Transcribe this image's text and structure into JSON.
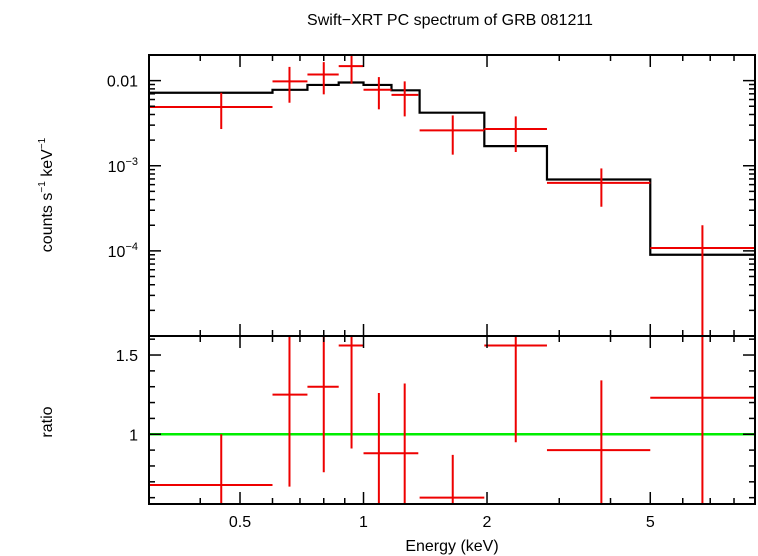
{
  "chart_data": {
    "type": "line",
    "title": "Swift−XRT PC spectrum of GRB 081211",
    "xlabel": "Energy (keV)",
    "xscale": "log",
    "xlim": [
      0.3,
      9.0
    ],
    "x_ticks": [
      {
        "value": 0.5,
        "label": "0.5"
      },
      {
        "value": 1,
        "label": "1"
      },
      {
        "value": 2,
        "label": "2"
      },
      {
        "value": 5,
        "label": "5"
      }
    ],
    "top_panel": {
      "ylabel": {
        "main": "counts s",
        "exp1": "−1",
        "mid": " keV",
        "exp2": "−1"
      },
      "yscale": "log",
      "ylim": [
        1e-05,
        0.02
      ],
      "y_ticks": [
        {
          "value": 0.01,
          "label": "0.01",
          "base": "",
          "exp": ""
        },
        {
          "value": 0.001,
          "label": "",
          "base": "10",
          "exp": "−3"
        },
        {
          "value": 0.0001,
          "label": "",
          "base": "10",
          "exp": "−4"
        }
      ],
      "data": [
        {
          "x": 0.45,
          "xlo": 0.3,
          "xhi": 0.6,
          "y": 0.0049,
          "ylo": 0.0027,
          "yhi": 0.0072
        },
        {
          "x": 0.66,
          "xlo": 0.6,
          "xhi": 0.73,
          "y": 0.0098,
          "ylo": 0.0055,
          "yhi": 0.0145
        },
        {
          "x": 0.8,
          "xlo": 0.73,
          "xhi": 0.87,
          "y": 0.0118,
          "ylo": 0.0069,
          "yhi": 0.0165
        },
        {
          "x": 0.935,
          "xlo": 0.87,
          "xhi": 1.0,
          "y": 0.0148,
          "ylo": 0.0092,
          "yhi": 0.0215
        },
        {
          "x": 1.09,
          "xlo": 1.0,
          "xhi": 1.17,
          "y": 0.0078,
          "ylo": 0.0046,
          "yhi": 0.011
        },
        {
          "x": 1.26,
          "xlo": 1.17,
          "xhi": 1.36,
          "y": 0.0068,
          "ylo": 0.0038,
          "yhi": 0.0098
        },
        {
          "x": 1.65,
          "xlo": 1.37,
          "xhi": 1.97,
          "y": 0.0026,
          "ylo": 0.00135,
          "yhi": 0.0039
        },
        {
          "x": 2.35,
          "xlo": 1.97,
          "xhi": 2.8,
          "y": 0.0027,
          "ylo": 0.00145,
          "yhi": 0.0038
        },
        {
          "x": 3.8,
          "xlo": 2.8,
          "xhi": 5.0,
          "y": 0.00063,
          "ylo": 0.00033,
          "yhi": 0.00093
        },
        {
          "x": 6.7,
          "xlo": 5.0,
          "xhi": 9.0,
          "y": 0.000108,
          "ylo": 1e-05,
          "yhi": 0.0002
        }
      ],
      "model": [
        {
          "xlo": 0.3,
          "xhi": 0.6,
          "y": 0.0072
        },
        {
          "xlo": 0.6,
          "xhi": 0.73,
          "y": 0.0078
        },
        {
          "xlo": 0.73,
          "xhi": 0.87,
          "y": 0.0089
        },
        {
          "xlo": 0.87,
          "xhi": 1.0,
          "y": 0.0095
        },
        {
          "xlo": 1.0,
          "xhi": 1.17,
          "y": 0.0089
        },
        {
          "xlo": 1.17,
          "xhi": 1.37,
          "y": 0.0077
        },
        {
          "xlo": 1.37,
          "xhi": 1.97,
          "y": 0.0042
        },
        {
          "xlo": 1.97,
          "xhi": 2.8,
          "y": 0.0017
        },
        {
          "xlo": 2.8,
          "xhi": 5.0,
          "y": 0.00069
        },
        {
          "xlo": 5.0,
          "xhi": 9.0,
          "y": 9e-05
        }
      ]
    },
    "bottom_panel": {
      "ylabel": "ratio",
      "yscale": "linear",
      "ylim": [
        0.56,
        1.62
      ],
      "y_ticks": [
        {
          "value": 1,
          "label": "1"
        },
        {
          "value": 1.5,
          "label": "1.5"
        }
      ],
      "reference_line": 1.0,
      "data": [
        {
          "x": 0.45,
          "xlo": 0.3,
          "xhi": 0.6,
          "y": 0.68,
          "ylo": 0.36,
          "yhi": 1.0
        },
        {
          "x": 0.66,
          "xlo": 0.6,
          "xhi": 0.73,
          "y": 1.25,
          "ylo": 0.67,
          "yhi": 1.85
        },
        {
          "x": 0.8,
          "xlo": 0.73,
          "xhi": 0.87,
          "y": 1.3,
          "ylo": 0.76,
          "yhi": 1.9
        },
        {
          "x": 0.935,
          "xlo": 0.87,
          "xhi": 1.0,
          "y": 1.56,
          "ylo": 0.91,
          "yhi": 2.2
        },
        {
          "x": 1.09,
          "xlo": 1.0,
          "xhi": 1.17,
          "y": 0.88,
          "ylo": 0.49,
          "yhi": 1.26
        },
        {
          "x": 1.26,
          "xlo": 1.17,
          "xhi": 1.36,
          "y": 0.88,
          "ylo": 0.48,
          "yhi": 1.32
        },
        {
          "x": 1.65,
          "xlo": 1.37,
          "xhi": 1.97,
          "y": 0.6,
          "ylo": 0.3,
          "yhi": 0.87
        },
        {
          "x": 2.35,
          "xlo": 1.97,
          "xhi": 2.8,
          "y": 1.56,
          "ylo": 0.95,
          "yhi": 2.2
        },
        {
          "x": 3.8,
          "xlo": 2.8,
          "xhi": 5.0,
          "y": 0.9,
          "ylo": 0.46,
          "yhi": 1.34
        },
        {
          "x": 6.7,
          "xlo": 5.0,
          "xhi": 9.0,
          "y": 1.23,
          "ylo": 0.3,
          "yhi": 2.3
        }
      ]
    },
    "colors": {
      "data": "#ee0000",
      "model": "#000000",
      "reference": "#00ee00",
      "frame": "#000000"
    }
  }
}
